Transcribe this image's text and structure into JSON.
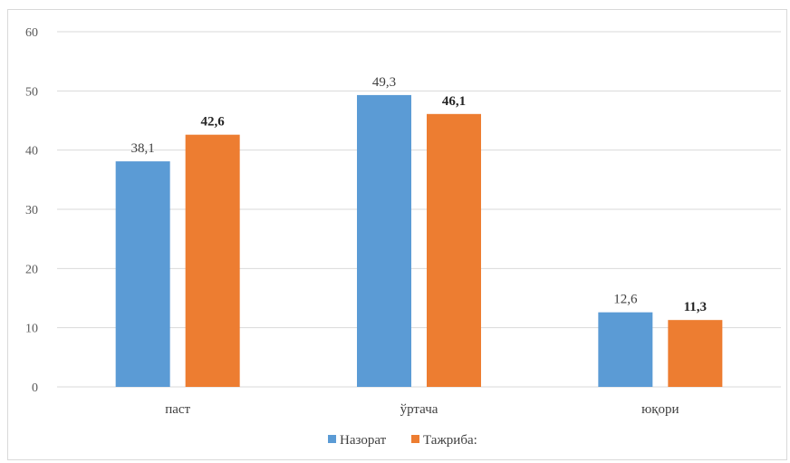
{
  "chart_data": {
    "type": "bar",
    "categories": [
      "паст",
      "ўртача",
      "юқори"
    ],
    "series": [
      {
        "name": "Назорат",
        "values": [
          38.1,
          49.3,
          12.6
        ],
        "labels": [
          "38,1",
          "49,3",
          "12,6"
        ],
        "color": "#5b9bd5",
        "label_bold": false
      },
      {
        "name": "Тажриба:",
        "values": [
          42.6,
          46.1,
          11.3
        ],
        "labels": [
          "42,6",
          "46,1",
          "11,3"
        ],
        "color": "#ed7d31",
        "label_bold": true
      }
    ],
    "ylim": [
      0,
      60
    ],
    "yticks": [
      0,
      10,
      20,
      30,
      40,
      50,
      60
    ],
    "grid": true,
    "gridColor": "#d9d9d9",
    "legend": "bottom"
  }
}
